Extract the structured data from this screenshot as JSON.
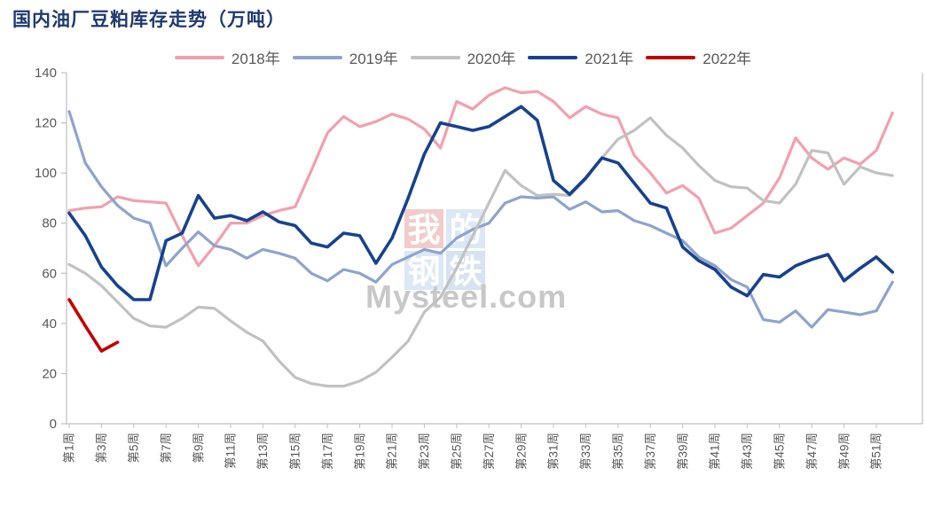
{
  "title": "国内油厂豆粕库存走势（万吨）",
  "colors": {
    "title": "#1F3A6E",
    "axis_line": "#BFBFBF",
    "axis_label": "#595959",
    "legend_label": "#595959",
    "background": "#FFFFFF"
  },
  "watermark": {
    "grid": [
      {
        "char": "我",
        "bg": "#F2CBCB"
      },
      {
        "char": "的",
        "bg": "#DCE8F4"
      },
      {
        "char": "钢",
        "bg": "#DCE8F4"
      },
      {
        "char": "铁",
        "bg": "#D6E3F0"
      }
    ],
    "brand": "Mysteel.com",
    "brand_color": "#C8C8C8"
  },
  "chart_data": {
    "type": "line",
    "title": "国内油厂豆粕库存走势（万吨）",
    "xlabel": "",
    "ylabel": "",
    "ylim": [
      0,
      140
    ],
    "y_ticks": [
      0,
      20,
      40,
      60,
      80,
      100,
      120,
      140
    ],
    "weeks_total": 52,
    "x_tick_labels": [
      "第1周",
      "第3周",
      "第5周",
      "第7周",
      "第9周",
      "第11周",
      "第13周",
      "第15周",
      "第17周",
      "第19周",
      "第21周",
      "第23周",
      "第25周",
      "第27周",
      "第29周",
      "第31周",
      "第33周",
      "第35周",
      "第37周",
      "第39周",
      "第41周",
      "第43周",
      "第45周",
      "第47周",
      "第49周",
      "第51周"
    ],
    "legend_position": "top",
    "grid": false,
    "series": [
      {
        "name": "2018年",
        "color": "#F2A0AC",
        "width": 3.2,
        "values": [
          85,
          86,
          86.5,
          90.5,
          89,
          88.5,
          88,
          75,
          63,
          71,
          80,
          80,
          83,
          85,
          86.5,
          101,
          116,
          122.5,
          118.5,
          120.5,
          123.5,
          121.5,
          117.5,
          110,
          128.5,
          125.5,
          131,
          134,
          132,
          132.5,
          128.5,
          122,
          126.5,
          123.5,
          122,
          107,
          100,
          92,
          95,
          90,
          76,
          78,
          83,
          88,
          98,
          114,
          106,
          101.5,
          106,
          103.5,
          109,
          124
        ]
      },
      {
        "name": "2019年",
        "color": "#8FA3CC",
        "width": 3.2,
        "values": [
          124.5,
          104,
          94.5,
          87,
          82,
          80,
          63,
          70,
          76.5,
          71,
          69.5,
          66,
          69.5,
          68,
          66,
          60,
          57,
          61.5,
          60,
          56.5,
          63.5,
          66.5,
          69.5,
          68,
          74,
          77.5,
          80,
          88,
          90.5,
          90,
          90.5,
          85.5,
          88.5,
          84.5,
          85,
          81,
          79,
          76,
          73,
          66.5,
          63,
          57.5,
          54.5,
          41.5,
          40.5,
          45,
          38.5,
          45.5,
          44.5,
          43.5,
          45,
          56.5
        ]
      },
      {
        "name": "2020年",
        "color": "#C2C1C1",
        "width": 3.2,
        "values": [
          63.5,
          60,
          55,
          48.5,
          42,
          39,
          38.5,
          42,
          46.5,
          46,
          41,
          36.5,
          33,
          25,
          18.5,
          16,
          15,
          15,
          17,
          20.5,
          26.5,
          33,
          44.5,
          50.5,
          62,
          75,
          88,
          101,
          95,
          91,
          91.5,
          91,
          97.5,
          106,
          113.5,
          117,
          122,
          115,
          110,
          103,
          97,
          94.5,
          94,
          89,
          88,
          95.5,
          109,
          108,
          95.5,
          102.5,
          100,
          99
        ]
      },
      {
        "name": "2021年",
        "color": "#17428E",
        "width": 3.6,
        "values": [
          84,
          75,
          62.5,
          55,
          49.5,
          49.5,
          73,
          76,
          91,
          82,
          83,
          81,
          84.5,
          80.5,
          79,
          72,
          70.5,
          76,
          75,
          64,
          74,
          90,
          107.5,
          120,
          118.5,
          117,
          118.5,
          122.5,
          126.5,
          121,
          97,
          91.5,
          98,
          106,
          104,
          96,
          88,
          86,
          70.5,
          65,
          61.5,
          54.5,
          51,
          59.5,
          58.5,
          63,
          65.5,
          67.5,
          57,
          62,
          66.5,
          60.5
        ]
      },
      {
        "name": "2022年",
        "color": "#C00000",
        "width": 3.6,
        "values": [
          49.5,
          39,
          29,
          32.5
        ]
      }
    ]
  }
}
